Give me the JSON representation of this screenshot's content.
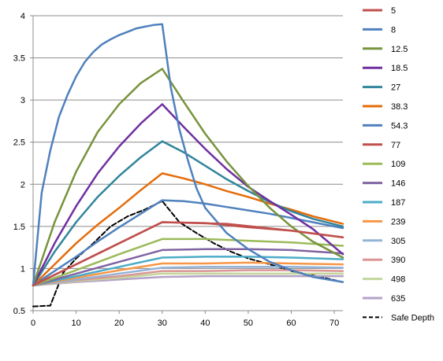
{
  "chart_data": {
    "type": "line",
    "xlim": [
      0,
      72
    ],
    "ylim": [
      0.5,
      4
    ],
    "x_ticks": [
      0,
      10,
      20,
      30,
      40,
      50,
      60,
      70
    ],
    "y_ticks": [
      0.5,
      1,
      1.5,
      2,
      2.5,
      3,
      3.5,
      4
    ],
    "y_tick_labels": [
      "0.5",
      "1",
      "1.5",
      "2",
      "2.5",
      "3",
      "3.5",
      "4"
    ],
    "grid": "horizontal",
    "legend_placement": "right",
    "series": [
      {
        "name": "5",
        "color": "#C0504D",
        "x": [
          0,
          30,
          45,
          60,
          72
        ],
        "y": [
          0.8,
          1.55,
          1.53,
          1.45,
          1.37
        ]
      },
      {
        "name": "8",
        "color": "#4F81BD",
        "x": [
          0,
          2,
          4,
          6,
          8,
          10,
          12,
          14,
          16,
          18,
          20,
          22,
          24,
          26,
          28,
          30,
          32,
          34,
          36,
          38,
          40,
          45,
          50,
          55,
          60,
          65,
          72
        ],
        "y": [
          0.8,
          1.9,
          2.4,
          2.8,
          3.06,
          3.28,
          3.45,
          3.57,
          3.66,
          3.72,
          3.77,
          3.81,
          3.85,
          3.87,
          3.89,
          3.9,
          3.15,
          2.65,
          2.28,
          1.95,
          1.72,
          1.42,
          1.23,
          1.08,
          0.98,
          0.9,
          0.84
        ]
      },
      {
        "name": "12.5",
        "color": "#77933C",
        "x": [
          0,
          5,
          10,
          15,
          20,
          25,
          30,
          35,
          40,
          45,
          50,
          55,
          60,
          65,
          72
        ],
        "y": [
          0.8,
          1.55,
          2.15,
          2.62,
          2.95,
          3.2,
          3.37,
          2.98,
          2.6,
          2.27,
          1.98,
          1.72,
          1.5,
          1.32,
          1.13
        ]
      },
      {
        "name": "18.5",
        "color": "#7030A0",
        "x": [
          0,
          5,
          10,
          15,
          20,
          25,
          30,
          35,
          40,
          45,
          50,
          55,
          60,
          65,
          72
        ],
        "y": [
          0.8,
          1.3,
          1.74,
          2.13,
          2.45,
          2.72,
          2.95,
          2.68,
          2.42,
          2.18,
          1.97,
          1.8,
          1.64,
          1.47,
          1.17
        ]
      },
      {
        "name": "27",
        "color": "#31859C",
        "x": [
          0,
          5,
          10,
          15,
          20,
          25,
          30,
          35,
          40,
          45,
          50,
          55,
          60,
          65,
          72
        ],
        "y": [
          0.8,
          1.2,
          1.55,
          1.85,
          2.1,
          2.32,
          2.51,
          2.38,
          2.22,
          2.06,
          1.92,
          1.79,
          1.68,
          1.59,
          1.5
        ]
      },
      {
        "name": "38.3",
        "color": "#E46C0A",
        "x": [
          0,
          5,
          10,
          15,
          20,
          25,
          30,
          35,
          40,
          45,
          50,
          55,
          60,
          65,
          72
        ],
        "y": [
          0.8,
          1.05,
          1.3,
          1.52,
          1.72,
          1.93,
          2.13,
          2.07,
          2.0,
          1.92,
          1.85,
          1.77,
          1.7,
          1.62,
          1.53
        ]
      },
      {
        "name": "54.3",
        "color": "#4F81BD",
        "x": [
          0,
          5,
          10,
          15,
          20,
          25,
          30,
          35,
          40,
          45,
          50,
          55,
          60,
          65,
          72
        ],
        "y": [
          0.8,
          0.97,
          1.14,
          1.32,
          1.49,
          1.65,
          1.81,
          1.8,
          1.77,
          1.73,
          1.69,
          1.65,
          1.6,
          1.55,
          1.48
        ]
      },
      {
        "name": "77",
        "color": "#C0504D",
        "x": [
          0,
          10,
          20,
          30,
          40,
          50,
          60,
          72
        ],
        "y": [
          0.8,
          1.05,
          1.3,
          1.55,
          1.54,
          1.49,
          1.45,
          1.37
        ]
      },
      {
        "name": "109",
        "color": "#9BBB59",
        "x": [
          0,
          10,
          20,
          30,
          40,
          50,
          60,
          72
        ],
        "y": [
          0.8,
          0.98,
          1.17,
          1.35,
          1.35,
          1.33,
          1.31,
          1.27
        ]
      },
      {
        "name": "146",
        "color": "#8064A2",
        "x": [
          0,
          10,
          20,
          30,
          40,
          50,
          60,
          72
        ],
        "y": [
          0.8,
          0.94,
          1.08,
          1.22,
          1.23,
          1.23,
          1.22,
          1.18
        ]
      },
      {
        "name": "187",
        "color": "#4BACC6",
        "x": [
          0,
          10,
          20,
          30,
          40,
          50,
          60,
          72
        ],
        "y": [
          0.8,
          0.91,
          1.02,
          1.13,
          1.14,
          1.14,
          1.13,
          1.11
        ]
      },
      {
        "name": "239",
        "color": "#F79646",
        "x": [
          0,
          10,
          20,
          30,
          40,
          50,
          60,
          72
        ],
        "y": [
          0.8,
          0.89,
          0.98,
          1.06,
          1.06,
          1.07,
          1.06,
          1.05
        ]
      },
      {
        "name": "305",
        "color": "#95B3D7",
        "x": [
          0,
          10,
          20,
          30,
          40,
          50,
          60,
          72
        ],
        "y": [
          0.8,
          0.87,
          0.94,
          1.01,
          1.02,
          1.02,
          1.02,
          1.01
        ]
      },
      {
        "name": "390",
        "color": "#D99694",
        "x": [
          0,
          10,
          20,
          30,
          40,
          50,
          60,
          72
        ],
        "y": [
          0.8,
          0.86,
          0.91,
          0.97,
          0.97,
          0.98,
          0.98,
          0.97
        ]
      },
      {
        "name": "498",
        "color": "#C3D69B",
        "x": [
          0,
          10,
          20,
          30,
          40,
          50,
          60,
          72
        ],
        "y": [
          0.8,
          0.85,
          0.89,
          0.94,
          0.94,
          0.94,
          0.94,
          0.94
        ]
      },
      {
        "name": "635",
        "color": "#B3A2C7",
        "x": [
          0,
          10,
          20,
          30,
          40,
          50,
          60,
          72
        ],
        "y": [
          0.8,
          0.84,
          0.87,
          0.9,
          0.91,
          0.91,
          0.91,
          0.91
        ]
      },
      {
        "name": "Safe Depth",
        "color": "#000000",
        "dash": "dashed",
        "x": [
          0,
          4,
          7,
          10,
          14,
          18,
          22,
          26,
          30,
          34,
          38,
          42,
          46,
          50,
          55,
          60,
          65,
          72
        ],
        "y": [
          0.55,
          0.56,
          0.95,
          1.12,
          1.3,
          1.5,
          1.62,
          1.7,
          1.8,
          1.55,
          1.42,
          1.3,
          1.2,
          1.12,
          1.05,
          0.97,
          0.92,
          0.84
        ]
      }
    ]
  }
}
